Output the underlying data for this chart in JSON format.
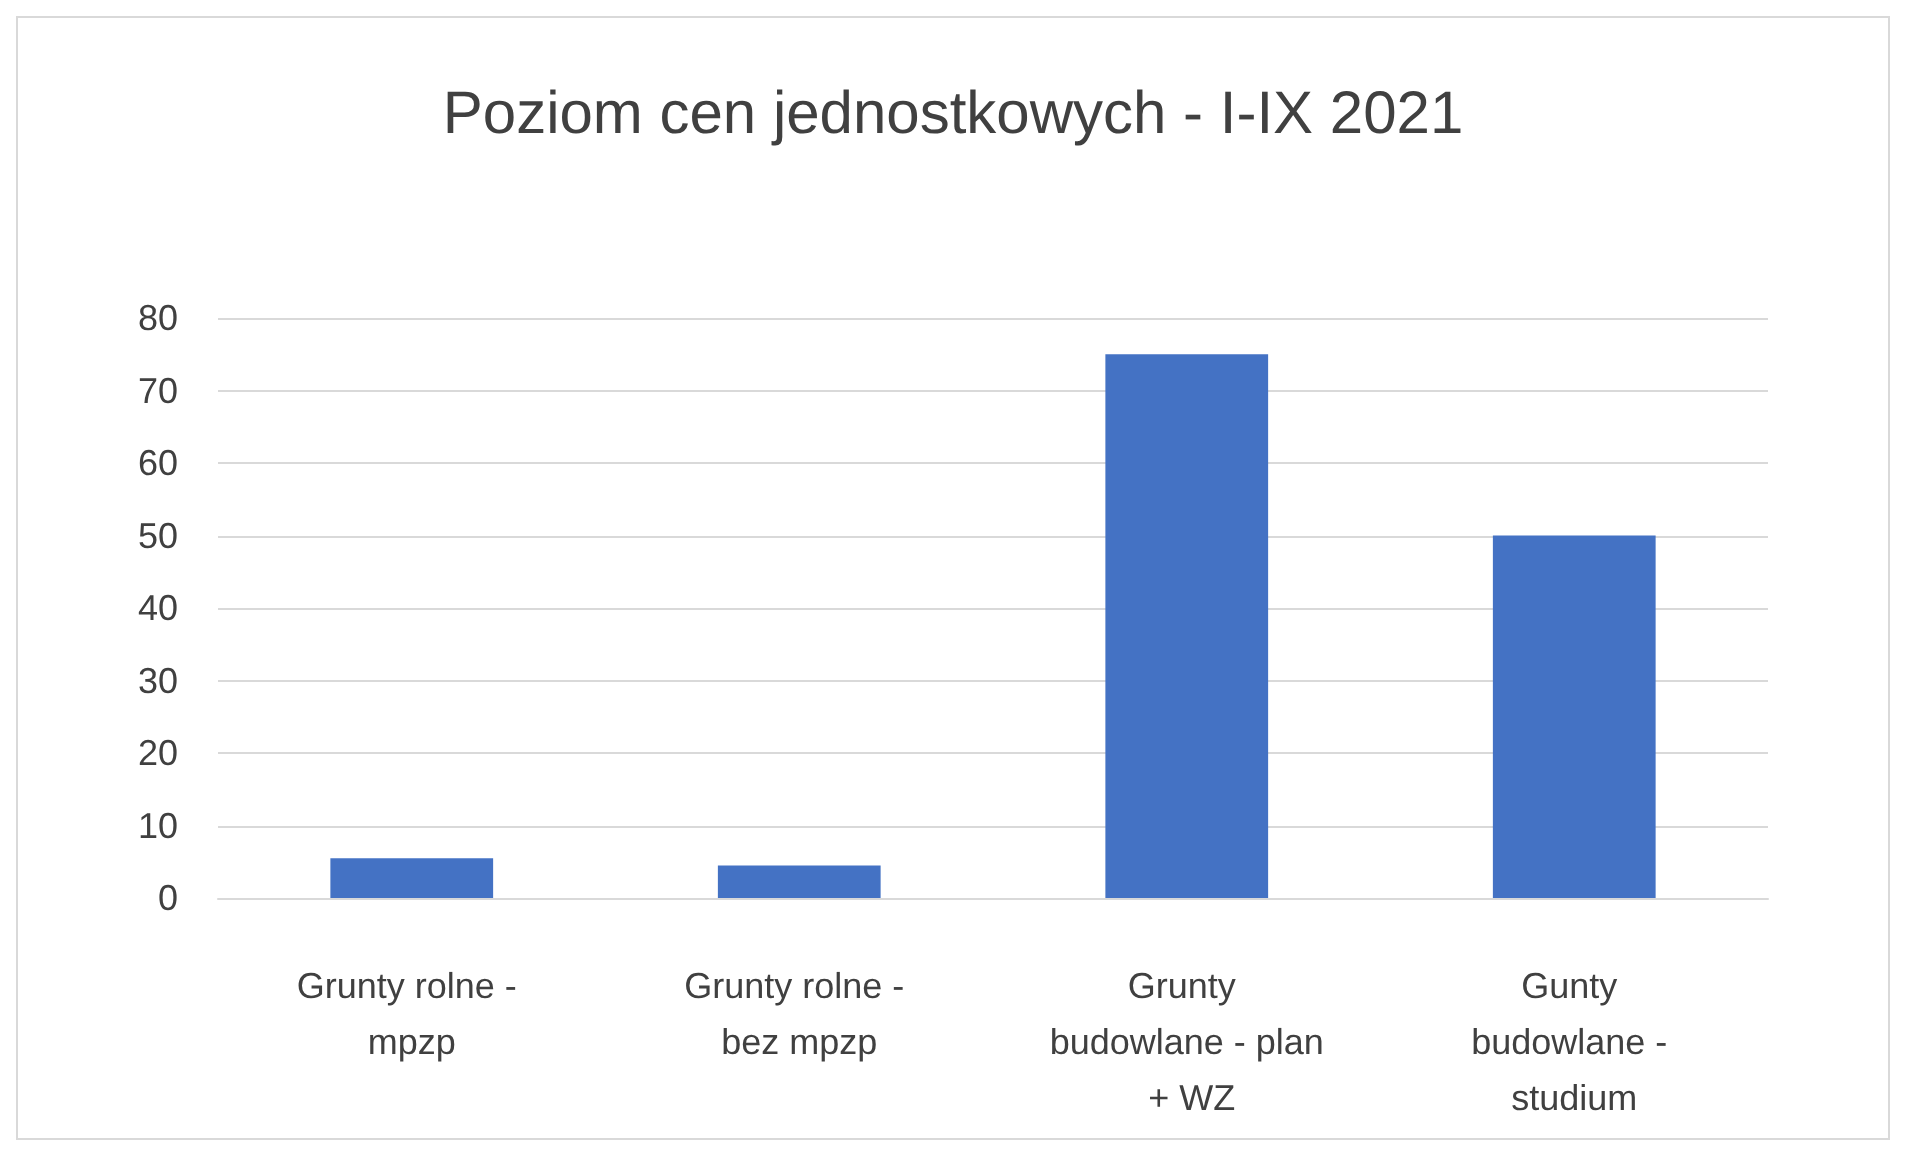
{
  "chart_data": {
    "type": "bar",
    "title": "Poziom cen jednostkowych - I-IX 2021",
    "categories": [
      "Grunty rolne - mpzp",
      "Grunty rolne - bez mpzp",
      "Grunty budowlane - plan + WZ",
      "Gunty budowlane - studium"
    ],
    "values": [
      5.5,
      4.5,
      75,
      50
    ],
    "color": "#4472c4",
    "ylim": [
      0,
      80
    ],
    "yticks": [
      0,
      10,
      20,
      30,
      40,
      50,
      60,
      70,
      80
    ],
    "grid": true
  }
}
